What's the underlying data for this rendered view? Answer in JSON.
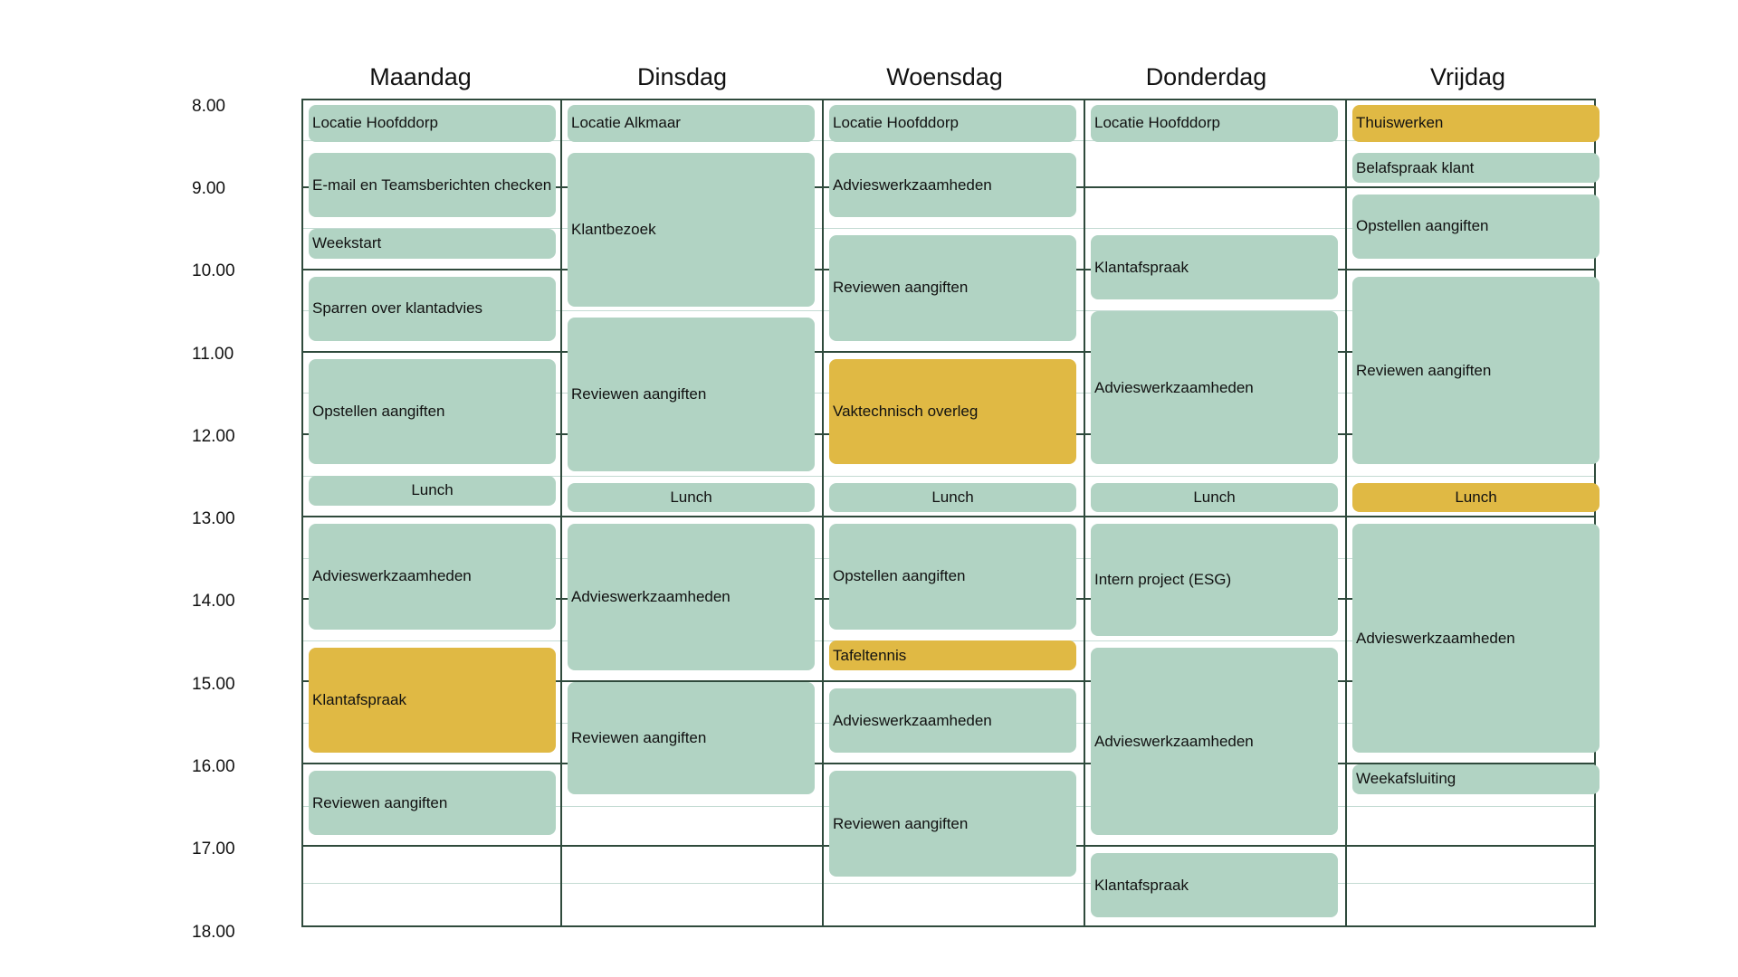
{
  "colors": {
    "green": "#b1d3c3",
    "yellow": "#e0b944",
    "grid": "#2f4a3c",
    "subgrid": "#c4dbd3"
  },
  "days": [
    "Maandag",
    "Dinsdag",
    "Woensdag",
    "Donderdag",
    "Vrijdag"
  ],
  "times": [
    "8.00",
    "9.00",
    "10.00",
    "11.00",
    "12.00",
    "13.00",
    "14.00",
    "15.00",
    "16.00",
    "17.00",
    "18.00"
  ],
  "events": [
    {
      "day": 0,
      "start": "08:00",
      "end": "08:30",
      "label": "Locatie Hoofddorp",
      "color": "green"
    },
    {
      "day": 0,
      "start": "08:35",
      "end": "09:25",
      "label": "E-mail en Teamsberichten checken",
      "color": "green"
    },
    {
      "day": 0,
      "start": "09:30",
      "end": "09:55",
      "label": "Weekstart",
      "color": "green"
    },
    {
      "day": 0,
      "start": "10:05",
      "end": "10:55",
      "label": "Sparren over klantadvies",
      "color": "green"
    },
    {
      "day": 0,
      "start": "11:05",
      "end": "12:25",
      "label": "Opstellen aangiften",
      "color": "green"
    },
    {
      "day": 0,
      "start": "12:30",
      "end": "12:55",
      "label": "Lunch",
      "color": "green",
      "center": true
    },
    {
      "day": 0,
      "start": "13:05",
      "end": "14:25",
      "label": "Advieswerkzaamheden",
      "color": "green"
    },
    {
      "day": 0,
      "start": "14:35",
      "end": "15:55",
      "label": "Klantafspraak",
      "color": "yellow"
    },
    {
      "day": 0,
      "start": "16:05",
      "end": "16:55",
      "label": "Reviewen aangiften",
      "color": "green"
    },
    {
      "day": 1,
      "start": "08:00",
      "end": "08:30",
      "label": "Locatie Alkmaar",
      "color": "green"
    },
    {
      "day": 1,
      "start": "08:35",
      "end": "10:30",
      "label": "Klantbezoek",
      "color": "green"
    },
    {
      "day": 1,
      "start": "10:35",
      "end": "12:30",
      "label": "Reviewen aangiften",
      "color": "green"
    },
    {
      "day": 1,
      "start": "12:35",
      "end": "13:00",
      "label": "Lunch",
      "color": "green",
      "center": true
    },
    {
      "day": 1,
      "start": "13:05",
      "end": "14:55",
      "label": "Advieswerkzaamheden",
      "color": "green"
    },
    {
      "day": 1,
      "start": "15:00",
      "end": "16:25",
      "label": "Reviewen aangiften",
      "color": "green"
    },
    {
      "day": 2,
      "start": "08:00",
      "end": "08:30",
      "label": "Locatie Hoofddorp",
      "color": "green"
    },
    {
      "day": 2,
      "start": "08:35",
      "end": "09:25",
      "label": "Advieswerkzaamheden",
      "color": "green"
    },
    {
      "day": 2,
      "start": "09:35",
      "end": "10:55",
      "label": "Reviewen aangiften",
      "color": "green"
    },
    {
      "day": 2,
      "start": "11:05",
      "end": "12:25",
      "label": "Vaktechnisch overleg",
      "color": "yellow"
    },
    {
      "day": 2,
      "start": "12:35",
      "end": "13:00",
      "label": "Lunch",
      "color": "green",
      "center": true
    },
    {
      "day": 2,
      "start": "13:05",
      "end": "14:25",
      "label": "Opstellen aangiften",
      "color": "green"
    },
    {
      "day": 2,
      "start": "14:30",
      "end": "14:55",
      "label": "Tafeltennis",
      "color": "yellow"
    },
    {
      "day": 2,
      "start": "15:05",
      "end": "15:55",
      "label": "Advieswerkzaamheden",
      "color": "green"
    },
    {
      "day": 2,
      "start": "16:05",
      "end": "17:25",
      "label": "Reviewen aangiften",
      "color": "green"
    },
    {
      "day": 3,
      "start": "08:00",
      "end": "08:30",
      "label": "Locatie Hoofddorp",
      "color": "green"
    },
    {
      "day": 3,
      "start": "09:35",
      "end": "10:25",
      "label": "Klantafspraak",
      "color": "green"
    },
    {
      "day": 3,
      "start": "10:30",
      "end": "12:25",
      "label": "Advieswerkzaamheden",
      "color": "green"
    },
    {
      "day": 3,
      "start": "12:35",
      "end": "13:00",
      "label": "Lunch",
      "color": "green",
      "center": true
    },
    {
      "day": 3,
      "start": "13:05",
      "end": "14:30",
      "label": "Intern project (ESG)",
      "color": "green"
    },
    {
      "day": 3,
      "start": "14:35",
      "end": "16:55",
      "label": "Advieswerkzaamheden",
      "color": "green"
    },
    {
      "day": 3,
      "start": "17:05",
      "end": "17:55",
      "label": "Klantafspraak",
      "color": "green"
    },
    {
      "day": 4,
      "start": "08:00",
      "end": "08:30",
      "label": "Thuiswerken",
      "color": "yellow"
    },
    {
      "day": 4,
      "start": "08:35",
      "end": "09:00",
      "label": "Belafspraak klant",
      "color": "green"
    },
    {
      "day": 4,
      "start": "09:05",
      "end": "09:55",
      "label": "Opstellen aangiften",
      "color": "green"
    },
    {
      "day": 4,
      "start": "10:05",
      "end": "12:25",
      "label": "Reviewen aangiften",
      "color": "green"
    },
    {
      "day": 4,
      "start": "12:35",
      "end": "13:00",
      "label": "Lunch",
      "color": "yellow",
      "center": true
    },
    {
      "day": 4,
      "start": "13:05",
      "end": "15:55",
      "label": "Advieswerkzaamheden",
      "color": "green"
    },
    {
      "day": 4,
      "start": "16:00",
      "end": "16:25",
      "label": "Weekafsluiting",
      "color": "green"
    }
  ]
}
